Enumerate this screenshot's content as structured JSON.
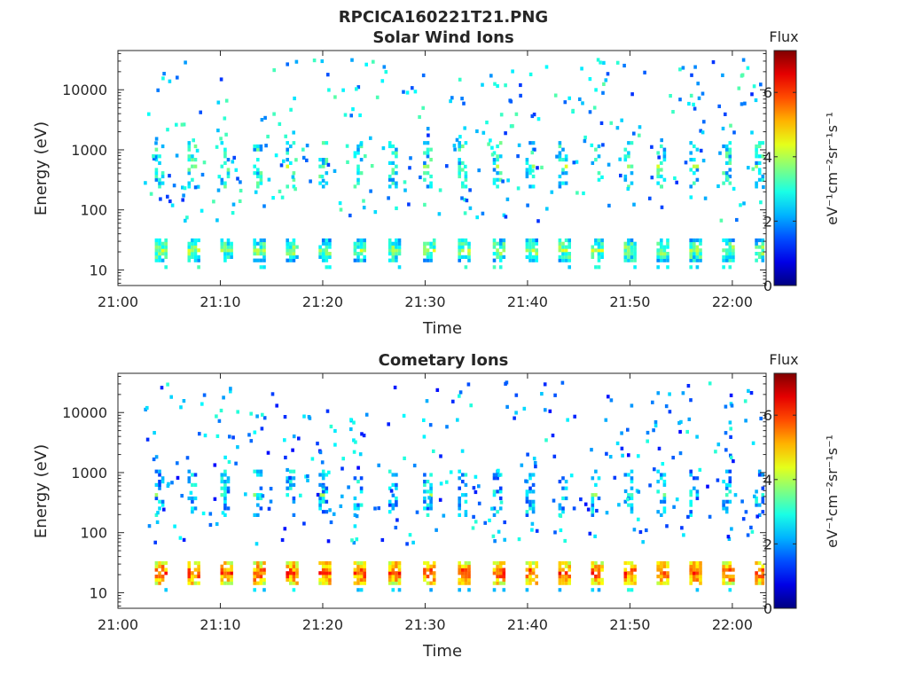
{
  "figure": {
    "title": "RPCICA160221T21.PNG"
  },
  "chart_data": [
    {
      "type": "heatmap",
      "title": "Solar Wind Ions",
      "xlabel": "Time",
      "ylabel": "Energy (eV)",
      "x_tick_labels": [
        "21:00",
        "21:10",
        "21:20",
        "21:30",
        "21:40",
        "21:50",
        "22:00"
      ],
      "x_tick_minutes": [
        0,
        10,
        20,
        30,
        40,
        50,
        60
      ],
      "xlim_minutes": [
        0,
        63.3
      ],
      "yscale": "log",
      "ylim": [
        5.5,
        45000
      ],
      "y_tick_labels": [
        "10",
        "100",
        "1000",
        "10000"
      ],
      "y_tick_values": [
        10,
        100,
        1000,
        10000
      ],
      "colorbar": {
        "title": "Flux",
        "label": "eV⁻¹cm⁻²sr⁻¹s⁻¹",
        "range": [
          0,
          7.3
        ],
        "tick_labels": [
          "0",
          "2",
          "4",
          "6"
        ],
        "tick_values": [
          0,
          2,
          4,
          6
        ],
        "colormap": "jet"
      },
      "pulse_start_minutes": [
        3.6,
        6.8,
        10.0,
        13.2,
        16.4,
        19.6,
        23.0,
        26.4,
        29.8,
        33.2,
        36.6,
        39.8,
        43.0,
        46.2,
        49.4,
        52.6,
        55.8,
        59.0,
        62.2
      ],
      "low_band_center_eV": 20,
      "low_band_level": 3.3,
      "mid_band_center_eV": 500,
      "mid_band_level": 3.6,
      "sparse_level": 2.3,
      "seed": 11
    },
    {
      "type": "heatmap",
      "title": "Cometary Ions",
      "xlabel": "Time",
      "ylabel": "Energy (eV)",
      "x_tick_labels": [
        "21:00",
        "21:10",
        "21:20",
        "21:30",
        "21:40",
        "21:50",
        "22:00"
      ],
      "x_tick_minutes": [
        0,
        10,
        20,
        30,
        40,
        50,
        60
      ],
      "xlim_minutes": [
        0,
        63.3
      ],
      "yscale": "log",
      "ylim": [
        5.5,
        45000
      ],
      "y_tick_labels": [
        "10",
        "100",
        "1000",
        "10000"
      ],
      "y_tick_values": [
        10,
        100,
        1000,
        10000
      ],
      "colorbar": {
        "title": "Flux",
        "label": "eV⁻¹cm⁻²sr⁻¹s⁻¹",
        "range": [
          0,
          7.3
        ],
        "tick_labels": [
          "0",
          "2",
          "4",
          "6"
        ],
        "tick_values": [
          0,
          2,
          4,
          6
        ],
        "colormap": "jet"
      },
      "pulse_start_minutes": [
        3.6,
        6.8,
        10.0,
        13.2,
        16.4,
        19.6,
        23.0,
        26.4,
        29.8,
        33.2,
        36.6,
        39.8,
        43.0,
        46.2,
        49.4,
        52.6,
        55.8,
        59.0,
        62.2
      ],
      "low_band_center_eV": 20,
      "low_band_level": 5.4,
      "mid_band_center_eV": 400,
      "mid_band_level": 3.1,
      "sparse_level": 2.0,
      "seed": 29
    }
  ]
}
